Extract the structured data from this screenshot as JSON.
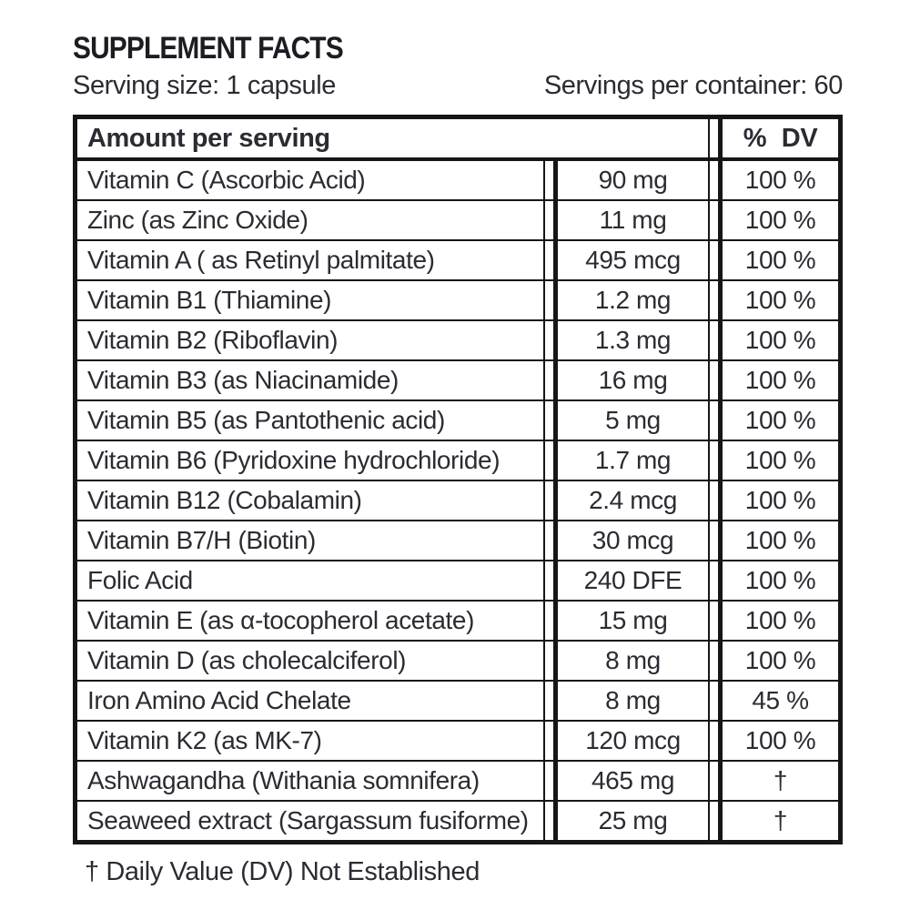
{
  "title": "SUPPLEMENT FACTS",
  "serving_size": "Serving size: 1 capsule",
  "servings_per_container": "Servings per container: 60",
  "table": {
    "header": {
      "amount_col": "Amount per serving",
      "dv_col": "% DV"
    },
    "rows": [
      {
        "name": "Vitamin C (Ascorbic Acid)",
        "amount": "90 mg",
        "dv": "100 %"
      },
      {
        "name": "Zinc (as Zinc Oxide)",
        "amount": "11 mg",
        "dv": "100 %"
      },
      {
        "name": "Vitamin A ( as Retinyl palmitate)",
        "amount": "495 mcg",
        "dv": "100 %"
      },
      {
        "name": "Vitamin B1 (Thiamine)",
        "amount": "1.2 mg",
        "dv": "100 %"
      },
      {
        "name": "Vitamin B2 (Riboflavin)",
        "amount": "1.3 mg",
        "dv": "100 %"
      },
      {
        "name": "Vitamin B3 (as Niacinamide)",
        "amount": "16 mg",
        "dv": "100 %"
      },
      {
        "name": "Vitamin B5 (as Pantothenic acid)",
        "amount": "5 mg",
        "dv": "100 %"
      },
      {
        "name": "Vitamin B6 (Pyridoxine hydrochloride)",
        "amount": "1.7 mg",
        "dv": "100 %"
      },
      {
        "name": "Vitamin B12 (Cobalamin)",
        "amount": "2.4 mcg",
        "dv": "100 %"
      },
      {
        "name": "Vitamin B7/H (Biotin)",
        "amount": "30 mcg",
        "dv": "100 %"
      },
      {
        "name": "Folic Acid",
        "amount": "240 DFE",
        "dv": "100 %"
      },
      {
        "name": "Vitamin E (as α-tocopherol acetate)",
        "amount": "15 mg",
        "dv": "100 %"
      },
      {
        "name": "Vitamin D (as cholecalciferol)",
        "amount": "8 mg",
        "dv": "100 %"
      },
      {
        "name": "Iron Amino Acid Chelate",
        "amount": "8 mg",
        "dv": "45 %"
      },
      {
        "name": "Vitamin K2 (as MK-7)",
        "amount": "120 mcg",
        "dv": "100 %"
      },
      {
        "name": "Ashwagandha (Withania somnifera)",
        "amount": "465 mg",
        "dv": "†"
      },
      {
        "name": "Seaweed extract (Sargassum fusiforme)",
        "amount": "25 mg",
        "dv": "†"
      }
    ]
  },
  "footnote": "† Daily Value (DV) Not Established",
  "colors": {
    "text": "#2b2b33",
    "border": "#161616",
    "background": "#ffffff"
  }
}
